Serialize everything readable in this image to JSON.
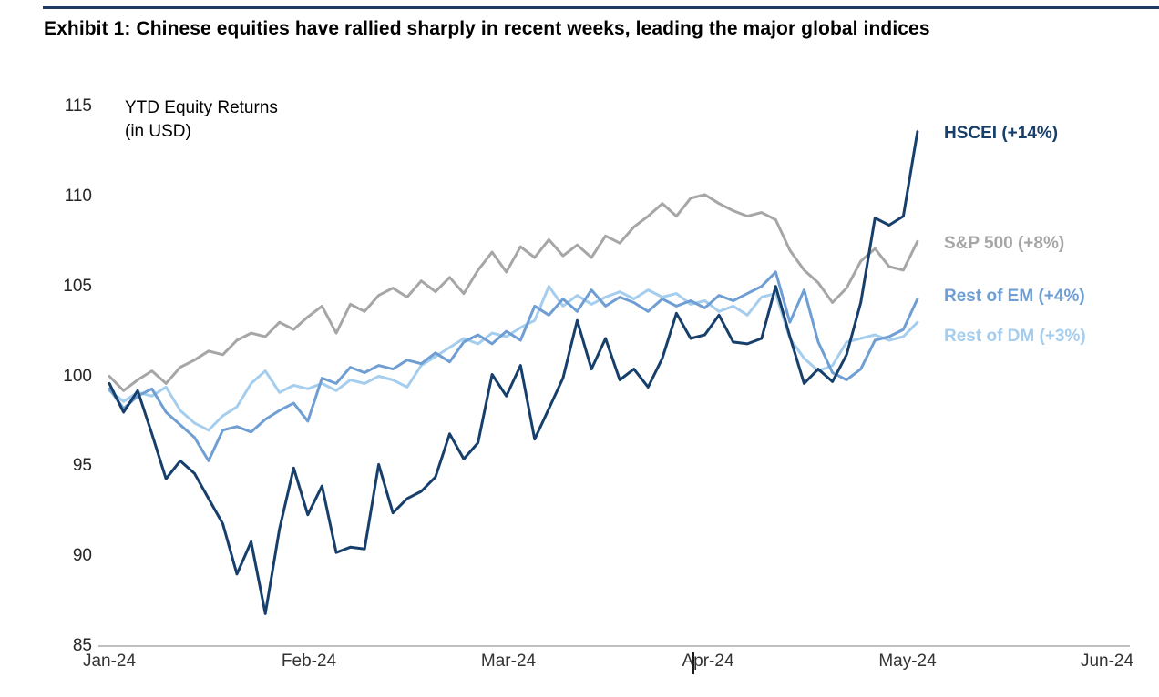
{
  "page": {
    "title": "Exhibit 1: Chinese equities have rallied sharply in recent weeks, leading the major global indices"
  },
  "chart": {
    "note_line1": "YTD Equity Returns",
    "note_line2": "(in USD)"
  },
  "chart_data": {
    "type": "line",
    "title": "YTD Equity Returns (in USD)",
    "xlabel": "",
    "ylabel": "",
    "ylim": [
      85,
      115
    ],
    "yticks": [
      115,
      110,
      105,
      100,
      95,
      90,
      85
    ],
    "x_axis_labels": [
      "Jan-24",
      "Feb-24",
      "Mar-24",
      "Apr-24",
      "May-24",
      "Jun-24"
    ],
    "x_months_range": [
      0,
      5
    ],
    "x_end_month": 4.05,
    "grid": false,
    "legend_position": "right-of-line-ends",
    "series": [
      {
        "name": "HSCEI (+14%)",
        "color": "#173f6b",
        "values": [
          99.6,
          98.0,
          99.2,
          96.8,
          94.3,
          95.3,
          94.6,
          93.2,
          91.8,
          89.0,
          90.8,
          86.8,
          91.5,
          94.9,
          92.3,
          93.9,
          90.2,
          90.5,
          90.4,
          95.1,
          92.4,
          93.2,
          93.6,
          94.4,
          96.8,
          95.4,
          96.3,
          100.1,
          98.9,
          100.6,
          96.5,
          98.2,
          99.9,
          103.1,
          100.4,
          102.1,
          99.8,
          100.4,
          99.4,
          101.0,
          103.5,
          102.1,
          102.3,
          103.4,
          101.9,
          101.8,
          102.1,
          105.0,
          102.2,
          99.6,
          100.4,
          99.7,
          101.2,
          104.1,
          108.8,
          108.4,
          108.9,
          113.6
        ]
      },
      {
        "name": "S&P 500 (+8%)",
        "color": "#a6a6a6",
        "values": [
          100.0,
          99.2,
          99.8,
          100.3,
          99.6,
          100.5,
          100.9,
          101.4,
          101.2,
          102.0,
          102.4,
          102.2,
          103.0,
          102.6,
          103.3,
          103.9,
          102.4,
          104.0,
          103.6,
          104.5,
          104.9,
          104.4,
          105.3,
          104.7,
          105.5,
          104.6,
          105.9,
          106.9,
          105.8,
          107.2,
          106.6,
          107.6,
          106.7,
          107.3,
          106.6,
          107.8,
          107.4,
          108.3,
          108.9,
          109.6,
          108.9,
          109.9,
          110.1,
          109.6,
          109.2,
          108.9,
          109.1,
          108.7,
          107.0,
          105.9,
          105.2,
          104.1,
          104.9,
          106.4,
          107.1,
          106.1,
          105.9,
          107.5
        ]
      },
      {
        "name": "Rest of EM (+4%)",
        "color": "#6f9ed3",
        "values": [
          99.3,
          98.2,
          98.9,
          99.3,
          98.0,
          97.3,
          96.6,
          95.3,
          97.0,
          97.2,
          96.9,
          97.6,
          98.1,
          98.5,
          97.5,
          99.9,
          99.6,
          100.5,
          100.2,
          100.6,
          100.4,
          100.9,
          100.7,
          101.3,
          100.8,
          101.9,
          102.3,
          101.8,
          102.5,
          102.0,
          103.9,
          103.4,
          104.3,
          103.6,
          104.8,
          103.9,
          104.4,
          104.1,
          103.6,
          104.3,
          103.9,
          104.2,
          103.8,
          104.5,
          104.2,
          104.6,
          105.0,
          105.8,
          103.0,
          104.8,
          101.9,
          100.2,
          99.8,
          100.4,
          102.0,
          102.2,
          102.6,
          104.3
        ]
      },
      {
        "name": "Rest of DM (+3%)",
        "color": "#a5cdee",
        "values": [
          99.2,
          98.6,
          99.1,
          98.9,
          99.4,
          98.1,
          97.4,
          97.0,
          97.8,
          98.3,
          99.6,
          100.3,
          99.1,
          99.5,
          99.3,
          99.6,
          99.2,
          99.8,
          99.6,
          100.0,
          99.8,
          99.4,
          100.6,
          101.1,
          101.6,
          102.1,
          101.8,
          102.4,
          102.2,
          102.7,
          103.1,
          105.0,
          103.9,
          104.5,
          104.0,
          104.4,
          104.7,
          104.3,
          104.8,
          104.4,
          104.6,
          104.0,
          104.2,
          103.6,
          103.9,
          103.4,
          104.4,
          104.6,
          102.1,
          101.0,
          100.3,
          100.6,
          101.9,
          102.1,
          102.3,
          102.0,
          102.2,
          103.0
        ]
      }
    ]
  }
}
